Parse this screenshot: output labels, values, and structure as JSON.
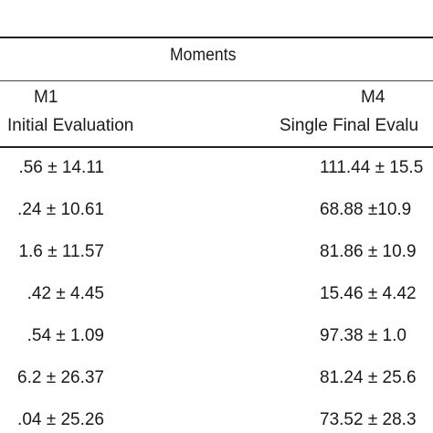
{
  "table": {
    "group_header": "Moments",
    "columns": [
      {
        "code": "M1",
        "name": "Initial Evaluation"
      },
      {
        "code": "M4",
        "name": "Single Final Evalu"
      }
    ],
    "rows": [
      {
        "m1": ".56 ± 14.11",
        "m4": "111.44 ± 15.5"
      },
      {
        "m1": ".24 ± 10.61",
        "m4": "68.88 ±10.9"
      },
      {
        "m1": "1.6 ± 11.57",
        "m4": "81.86 ± 10.9"
      },
      {
        "m1": ".42 ± 4.45",
        "m4": "15.46 ± 4.42"
      },
      {
        "m1": ".54 ± 1.09",
        "m4": "97.38 ± 1.0"
      },
      {
        "m1": "6.2 ± 26.37",
        "m4": "81.24 ± 25.6"
      },
      {
        "m1": ".04 ± 25.26",
        "m4": "73.52 ± 28.3"
      }
    ]
  }
}
